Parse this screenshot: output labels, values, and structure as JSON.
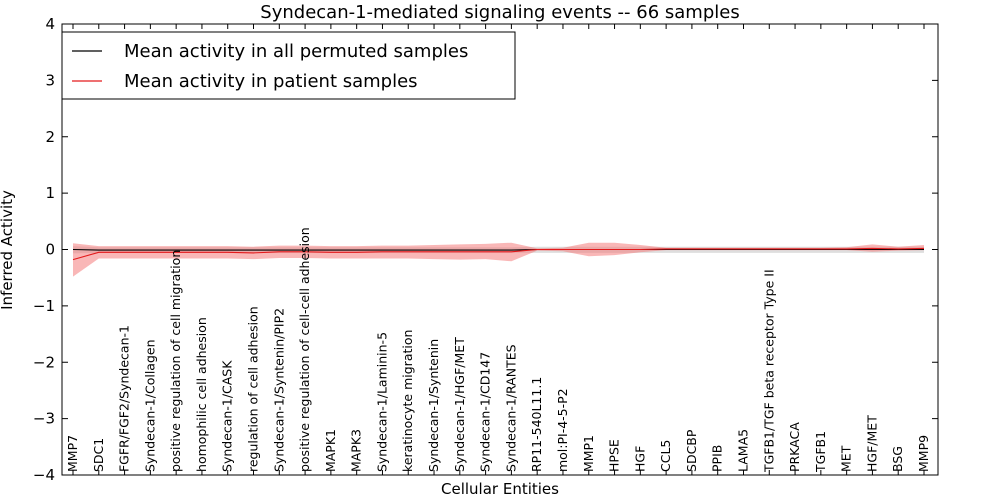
{
  "chart_data": {
    "type": "line",
    "title": "Syndecan-1-mediated signaling events -- 66 samples",
    "xlabel": "Cellular Entities",
    "ylabel": "Inferred Activity",
    "ylim": [
      -4,
      4
    ],
    "yticks": [
      -4,
      -3,
      -2,
      -1,
      0,
      1,
      2,
      3,
      4
    ],
    "ytick_labels": [
      "−4",
      "−3",
      "−2",
      "−1",
      "0",
      "1",
      "2",
      "3",
      "4"
    ],
    "categories": [
      "MMP7",
      "SDC1",
      "FGFR/FGF2/Syndecan-1",
      "Syndecan-1/Collagen",
      "positive regulation of cell migration",
      "homophilic cell adhesion",
      "Syndecan-1/CASK",
      "regulation of cell adhesion",
      "Syndecan-1/Syntenin/PIP2",
      "positive regulation of cell-cell adhesion",
      "MAPK1",
      "MAPK3",
      "Syndecan-1/Laminin-5",
      "keratinocyte migration",
      "Syndecan-1/Syntenin",
      "Syndecan-1/HGF/MET",
      "Syndecan-1/CD147",
      "Syndecan-1/RANTES",
      "RP11-540L11.1",
      "mol:PI-4-5-P2",
      "MMP1",
      "HPSE",
      "HGF",
      "CCL5",
      "SDCBP",
      "PPIB",
      "LAMA5",
      "TGFB1/TGF beta receptor Type II",
      "PRKACA",
      "TGFB1",
      "MET",
      "HGF/MET",
      "BSG",
      "MMP9"
    ],
    "legend_position": "upper-left",
    "series": [
      {
        "name": "Mean activity in all permuted samples",
        "color": "#000000",
        "band_color": "#c8c8c8",
        "values": [
          0.0,
          -0.01,
          -0.01,
          -0.01,
          -0.01,
          -0.01,
          -0.01,
          -0.01,
          -0.01,
          -0.01,
          -0.01,
          -0.01,
          -0.01,
          -0.01,
          -0.01,
          -0.01,
          -0.01,
          -0.01,
          0.0,
          0.0,
          0.0,
          0.0,
          0.0,
          0.0,
          0.0,
          0.0,
          0.0,
          0.0,
          0.0,
          0.0,
          0.0,
          0.0,
          0.0,
          0.0
        ],
        "upper": [
          0.06,
          0.04,
          0.04,
          0.04,
          0.04,
          0.04,
          0.04,
          0.04,
          0.04,
          0.04,
          0.04,
          0.04,
          0.04,
          0.04,
          0.04,
          0.04,
          0.04,
          0.04,
          0.05,
          0.05,
          0.05,
          0.05,
          0.05,
          0.05,
          0.05,
          0.05,
          0.05,
          0.05,
          0.05,
          0.05,
          0.05,
          0.05,
          0.05,
          0.05
        ],
        "lower": [
          -0.07,
          -0.06,
          -0.06,
          -0.06,
          -0.06,
          -0.06,
          -0.06,
          -0.06,
          -0.06,
          -0.06,
          -0.06,
          -0.06,
          -0.06,
          -0.06,
          -0.06,
          -0.06,
          -0.06,
          -0.06,
          -0.06,
          -0.06,
          -0.06,
          -0.06,
          -0.06,
          -0.06,
          -0.06,
          -0.06,
          -0.06,
          -0.06,
          -0.06,
          -0.06,
          -0.06,
          -0.06,
          -0.06,
          -0.06
        ]
      },
      {
        "name": "Mean activity in patient samples",
        "color": "#e41a1c",
        "band_color": "#f47c7c",
        "values": [
          -0.18,
          -0.05,
          -0.05,
          -0.05,
          -0.05,
          -0.05,
          -0.05,
          -0.06,
          -0.04,
          -0.04,
          -0.05,
          -0.05,
          -0.04,
          -0.04,
          -0.04,
          -0.04,
          -0.04,
          -0.04,
          0.0,
          0.0,
          0.0,
          0.0,
          0.0,
          0.01,
          0.01,
          0.01,
          0.01,
          0.01,
          0.01,
          0.01,
          0.01,
          0.02,
          0.01,
          0.02
        ],
        "upper": [
          0.11,
          0.06,
          0.06,
          0.06,
          0.06,
          0.06,
          0.06,
          0.05,
          0.07,
          0.07,
          0.06,
          0.06,
          0.07,
          0.07,
          0.08,
          0.09,
          0.1,
          0.12,
          0.02,
          0.03,
          0.12,
          0.12,
          0.08,
          0.03,
          0.03,
          0.03,
          0.03,
          0.03,
          0.03,
          0.03,
          0.04,
          0.09,
          0.05,
          0.08
        ],
        "lower": [
          -0.48,
          -0.16,
          -0.16,
          -0.16,
          -0.16,
          -0.16,
          -0.16,
          -0.17,
          -0.15,
          -0.15,
          -0.16,
          -0.16,
          -0.16,
          -0.16,
          -0.17,
          -0.18,
          -0.17,
          -0.21,
          -0.02,
          -0.03,
          -0.12,
          -0.1,
          -0.05,
          -0.01,
          -0.01,
          -0.01,
          -0.01,
          -0.01,
          -0.01,
          -0.01,
          -0.01,
          -0.04,
          -0.02,
          -0.01
        ]
      }
    ]
  }
}
